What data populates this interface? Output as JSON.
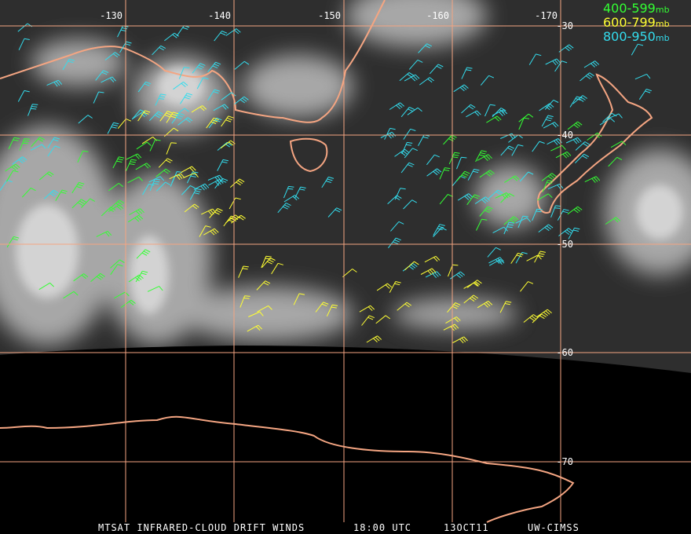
{
  "map": {
    "longitude_labels": [
      "-130",
      "-140",
      "-150",
      "-160",
      "-170"
    ],
    "latitude_labels": [
      "-30",
      "-40",
      "-50",
      "-60",
      "-70"
    ],
    "legend": [
      {
        "range": "400-599",
        "unit": "mb"
      },
      {
        "range": "600-799",
        "unit": "mb"
      },
      {
        "range": "800-950",
        "unit": "mb"
      }
    ],
    "footer": [
      "MTSAT INFRARED-CLOUD DRIFT WINDS",
      "18:00 UTC",
      "13OCT11",
      "UW-CIMSS"
    ]
  }
}
